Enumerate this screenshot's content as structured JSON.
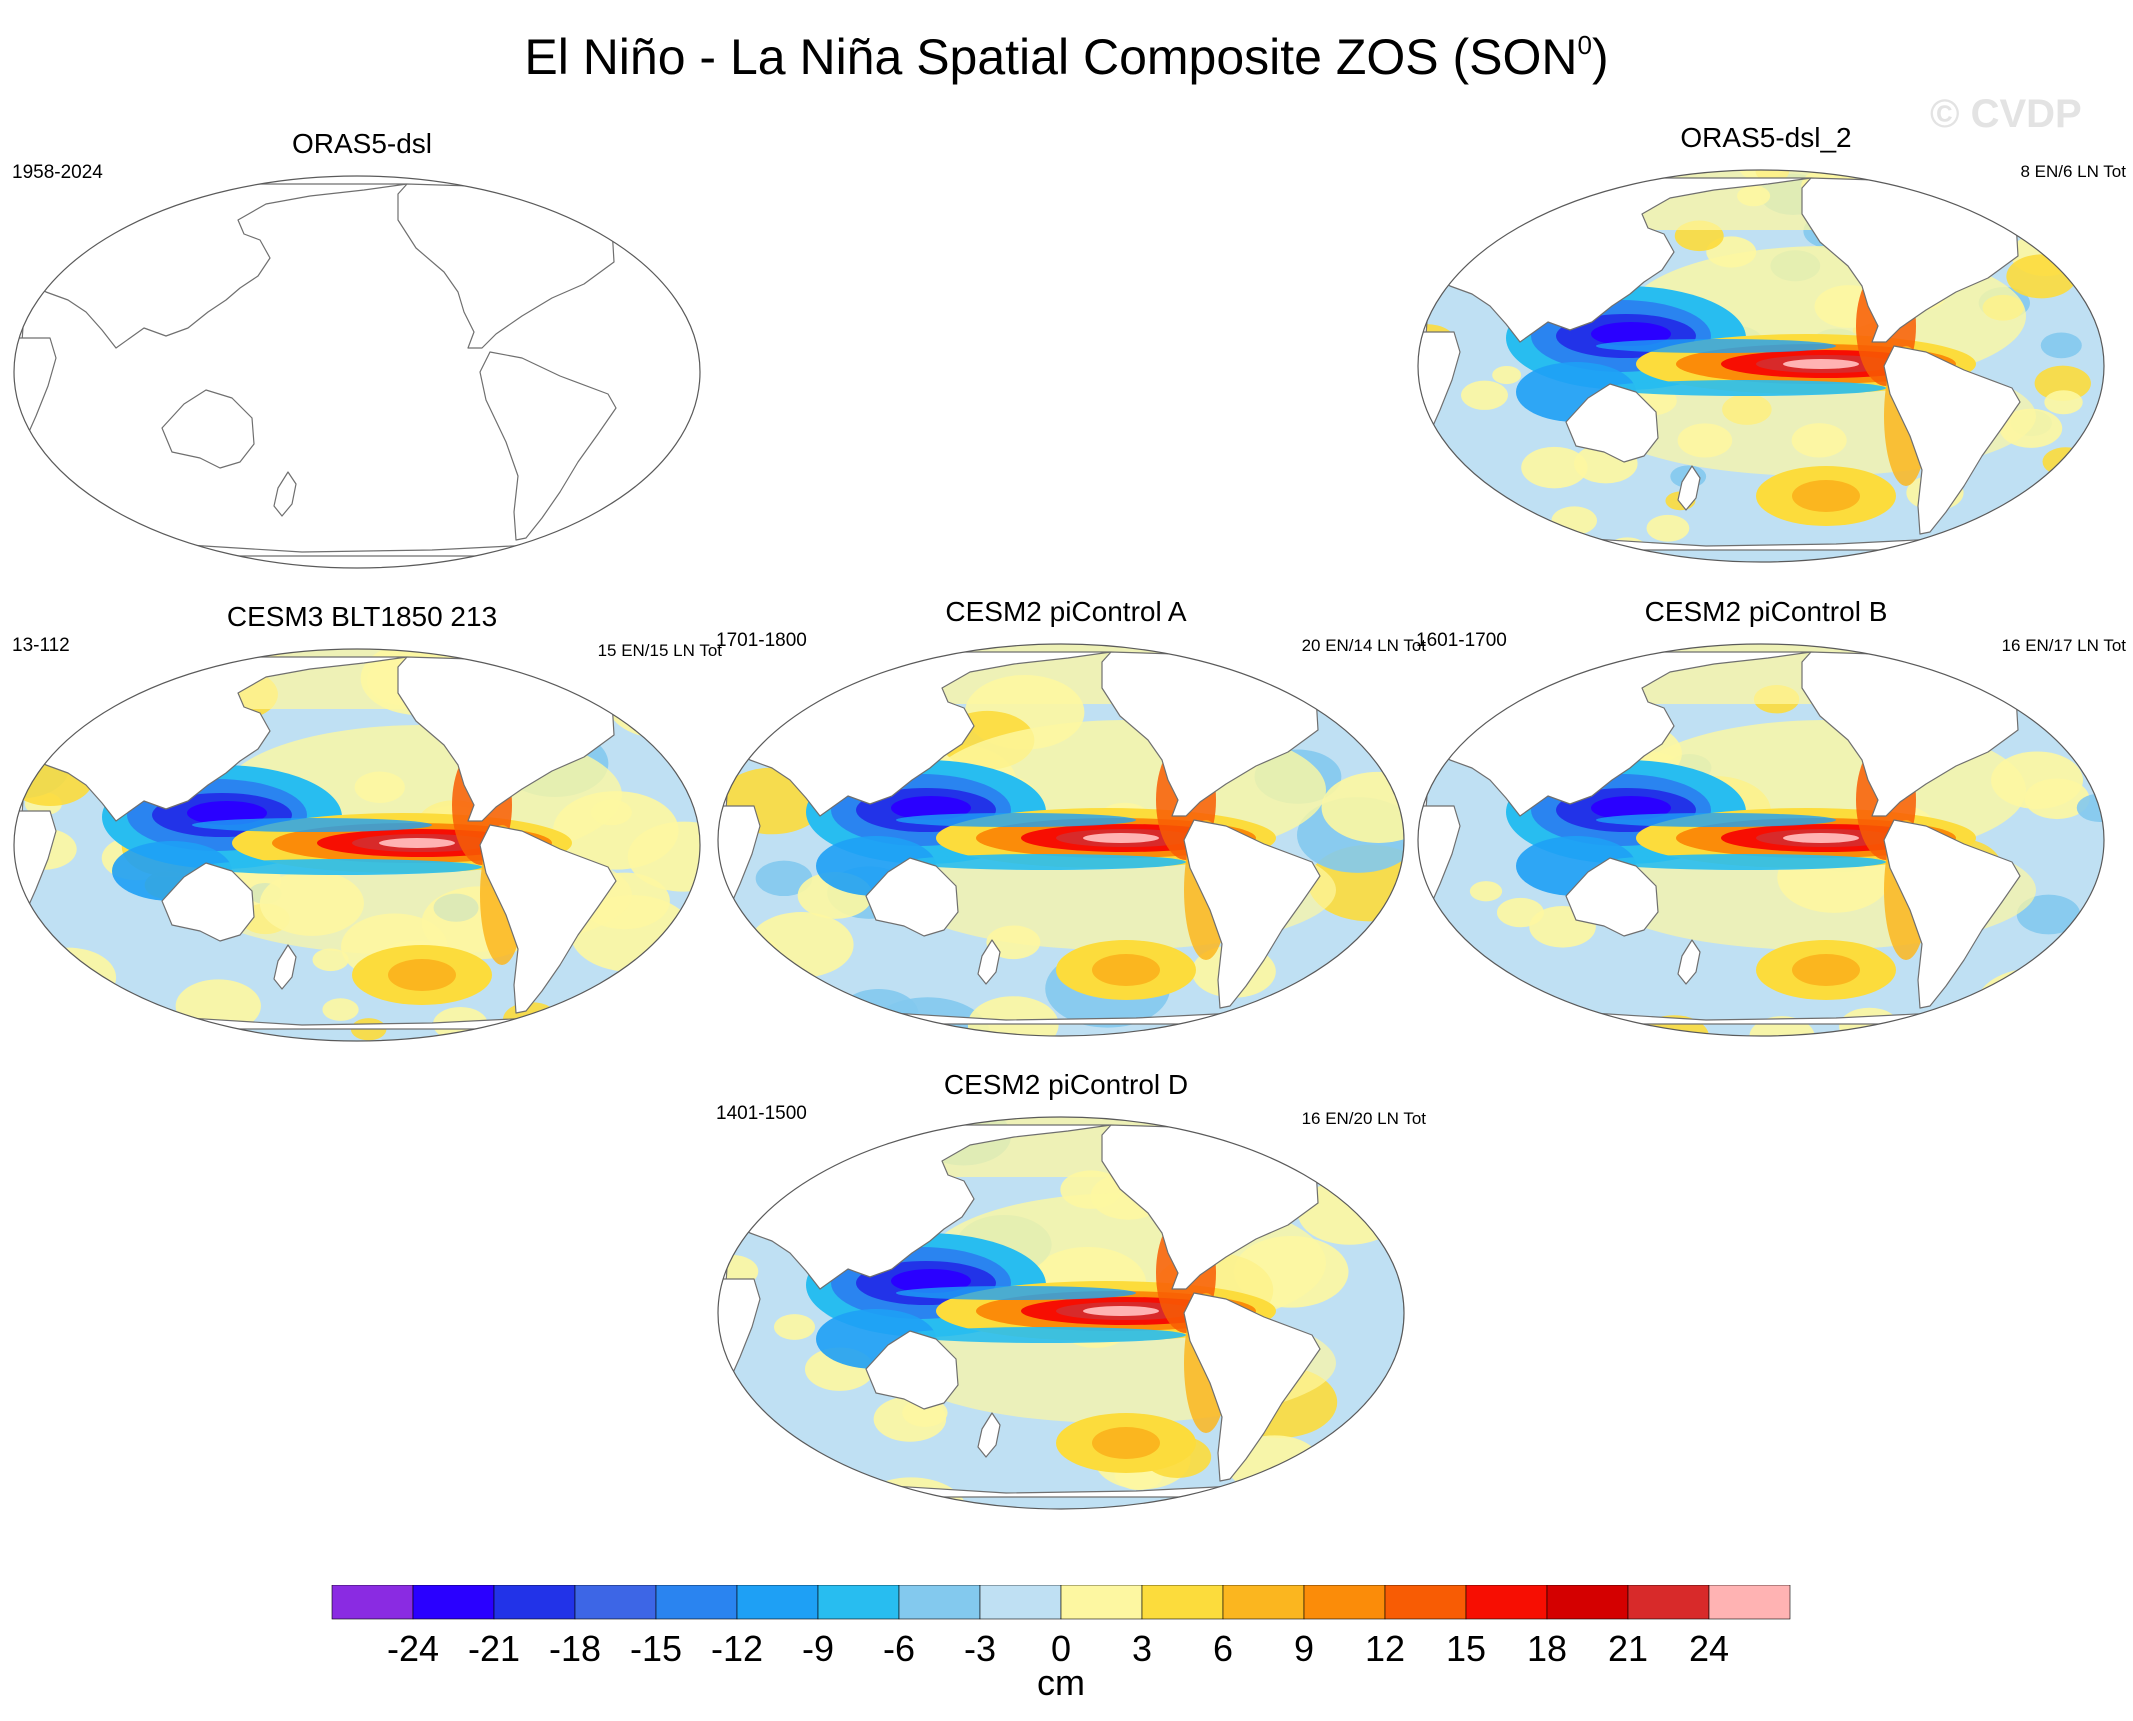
{
  "title_main": "El Niño - La Niña Spatial Composite ZOS (SON",
  "title_sup": "0",
  "title_close": ")",
  "watermark": "© CVDP",
  "panels": [
    {
      "id": "p0",
      "title": "ORAS5-dsl",
      "years": "1958-2024",
      "counts": "",
      "style": "empty"
    },
    {
      "id": "p1",
      "title": "ORAS5-dsl_2",
      "years": "",
      "counts": "8 EN/6 LN Tot",
      "style": "noisy"
    },
    {
      "id": "p2",
      "title": "CESM3 BLT1850 213",
      "years": "13-112",
      "counts": "15 EN/15 LN Tot",
      "style": "model-strong"
    },
    {
      "id": "p3",
      "title": "CESM2 piControl A",
      "years": "1701-1800",
      "counts": "20 EN/14 LN Tot",
      "style": "model"
    },
    {
      "id": "p4",
      "title": "CESM2 piControl B",
      "years": "1601-1700",
      "counts": "16 EN/17 LN Tot",
      "style": "model"
    },
    {
      "id": "p5",
      "title": "CESM2 piControl D",
      "years": "1401-1500",
      "counts": "16 EN/20 LN Tot",
      "style": "model"
    }
  ],
  "chart_data": {
    "type": "heatmap",
    "projection": "Robinson, centered on the Pacific",
    "title": "El Niño - La Niña Spatial Composite ZOS (SON0)",
    "units": "cm",
    "colorbar": {
      "ticks": [
        -24,
        -21,
        -18,
        -15,
        -12,
        -9,
        -6,
        -3,
        0,
        3,
        6,
        9,
        12,
        15,
        18,
        21,
        24
      ],
      "colors": [
        "#8a2be2",
        "#2a00ff",
        "#2233e8",
        "#3d66e6",
        "#2a84f0",
        "#1ea0f5",
        "#28bdf0",
        "#83c9ee",
        "#bfe0f3",
        "#fdf7a1",
        "#fcdc3c",
        "#fbb61f",
        "#fb8c09",
        "#f85c04",
        "#f70e02",
        "#d40000",
        "#d82a2a",
        "#ffb3b3"
      ]
    },
    "panels": [
      {
        "title": "ORAS5-dsl",
        "period": "1958-2024",
        "counts": "",
        "data": "none (map outline only)"
      },
      {
        "title": "ORAS5-dsl_2",
        "period": "",
        "counts": "8 EN/6 LN Tot",
        "equatorial_east_pacific_max_cm": 24,
        "west_pacific_min_cm": -21
      },
      {
        "title": "CESM3 BLT1850 213",
        "period": "13-112",
        "counts": "15 EN/15 LN Tot",
        "equatorial_east_pacific_max_cm": 24,
        "west_pacific_min_cm": -21
      },
      {
        "title": "CESM2 piControl A",
        "period": "1701-1800",
        "counts": "20 EN/14 LN Tot",
        "equatorial_east_pacific_max_cm": 24,
        "west_pacific_min_cm": -18
      },
      {
        "title": "CESM2 piControl B",
        "period": "1601-1700",
        "counts": "16 EN/17 LN Tot",
        "equatorial_east_pacific_max_cm": 21,
        "west_pacific_min_cm": -18
      },
      {
        "title": "CESM2 piControl D",
        "period": "1401-1500",
        "counts": "16 EN/20 LN Tot",
        "equatorial_east_pacific_max_cm": 24,
        "west_pacific_min_cm": -21
      }
    ],
    "xlabel": "cm"
  }
}
